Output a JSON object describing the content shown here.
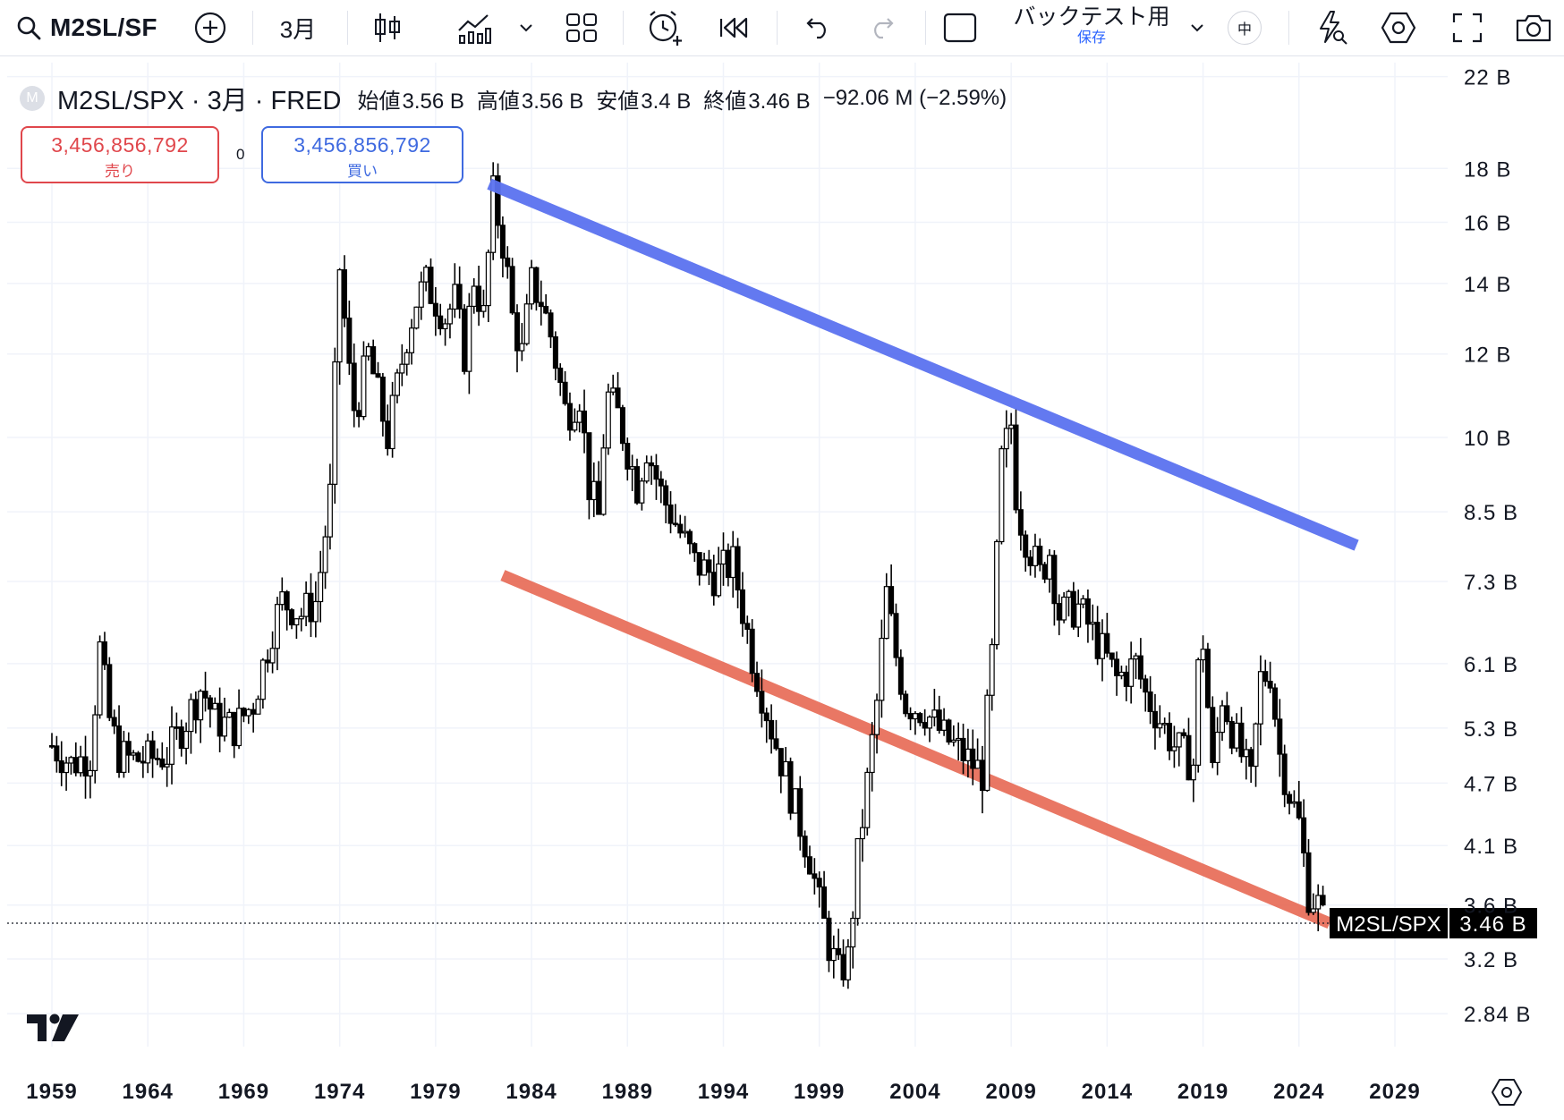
{
  "toolbar": {
    "symbol": "M2SL/SF",
    "interval": "3月",
    "layout_name": "バックテスト用",
    "layout_status": "保存",
    "lang_badge": "中"
  },
  "legend": {
    "logo_letter": "M",
    "symbol_line": "M2SL/SPX · 3月 · FRED",
    "open_label": "始値",
    "open": "3.56 B",
    "high_label": "高値",
    "high": "3.56 B",
    "low_label": "安値",
    "low": "3.4 B",
    "close_label": "終値",
    "close": "3.46 B",
    "change": "−92.06 M (−2.59%)"
  },
  "trade": {
    "sell_price": "3,456,856,792",
    "sell_label": "売り",
    "spread": "0",
    "buy_price": "3,456,856,792",
    "buy_label": "買い"
  },
  "colors": {
    "candle": "#000000",
    "upper_trendline": "#5b72f0",
    "lower_trendline": "#e8705c",
    "sell": "#e0474c",
    "buy": "#3f6ae0"
  },
  "chart_data": {
    "type": "candlestick",
    "title": "M2SL/SPX · 3月 · FRED",
    "scale": "log",
    "ylim": [
      2.7,
      22.5
    ],
    "y_unit": "B",
    "y_ticks": [
      2.84,
      3.2,
      3.6,
      4.1,
      4.7,
      5.3,
      6.1,
      7.3,
      8.5,
      10,
      12,
      14,
      16,
      18,
      22
    ],
    "y_tick_labels": [
      "2.84 B",
      "3.2 B",
      "3.6 B",
      "4.1 B",
      "4.7 B",
      "5.3 B",
      "6.1 B",
      "7.3 B",
      "8.5 B",
      "10 B",
      "12 B",
      "14 B",
      "16 B",
      "18 B",
      "22 B"
    ],
    "x_ticks": [
      1959,
      1964,
      1969,
      1974,
      1979,
      1984,
      1989,
      1994,
      1999,
      2004,
      2009,
      2014,
      2019,
      2024,
      2029
    ],
    "xlim": [
      1957.7,
      2031.3
    ],
    "grid": true,
    "last_price": 3.46,
    "last_price_label": "3.46 B",
    "last_symbol_tag": "M2SL/SPX",
    "series": [
      {
        "name": "M2SL/SPX",
        "x": [
          1959.0,
          1960.0,
          1961.0,
          1961.5,
          1962.0,
          1962.5,
          1963.0,
          1964.0,
          1965.0,
          1966.0,
          1966.8,
          1967.5,
          1968.5,
          1969.5,
          1970.5,
          1971.0,
          1972.0,
          1972.8,
          1973.5,
          1974.0,
          1974.5,
          1974.8,
          1975.5,
          1976.5,
          1977.5,
          1978.0,
          1978.5,
          1979.5,
          1980.0,
          1980.5,
          1981.0,
          1981.5,
          1982.0,
          1982.6,
          1983.0,
          1983.5,
          1984.0,
          1984.5,
          1985.0,
          1985.8,
          1986.5,
          1987.0,
          1987.5,
          1987.9,
          1988.5,
          1989.5,
          1990.0,
          1990.8,
          1991.5,
          1992.5,
          1993.5,
          1994.5,
          1995.5,
          1996.5,
          1997.5,
          1998.5,
          1999.0,
          1999.5,
          2000.0,
          2000.5,
          2001.0,
          2001.5,
          2002.0,
          2002.5,
          2003.0,
          2003.5,
          2004.5,
          2005.5,
          2006.5,
          2007.5,
          2008.0,
          2008.5,
          2009.0,
          2009.3,
          2009.8,
          2010.5,
          2011.0,
          2011.5,
          2012.5,
          2013.5,
          2014.5,
          2015.5,
          2016.0,
          2016.5,
          2017.5,
          2018.5,
          2018.9,
          2019.5,
          2020.0,
          2020.5,
          2021.5,
          2022.0,
          2022.5,
          2023.0,
          2023.5,
          2024.0,
          2024.5,
          2025.0,
          2025.3
        ],
        "close": [
          5.1,
          4.9,
          5.0,
          6.3,
          5.4,
          5.0,
          4.95,
          4.95,
          5.0,
          5.4,
          5.8,
          5.4,
          5.3,
          5.6,
          6.6,
          7.0,
          6.8,
          7.0,
          8.8,
          14.5,
          11.5,
          10.5,
          12.0,
          10.0,
          12.5,
          13.5,
          14.0,
          13.0,
          13.5,
          12.0,
          14.2,
          13.0,
          17.0,
          15.0,
          13.0,
          12.0,
          14.0,
          13.5,
          12.5,
          10.5,
          11.0,
          9.0,
          8.4,
          11.0,
          10.5,
          9.0,
          9.8,
          8.8,
          8.3,
          7.6,
          7.4,
          7.6,
          6.2,
          5.3,
          4.6,
          4.0,
          3.6,
          3.3,
          3.1,
          3.2,
          4.0,
          4.7,
          5.6,
          7.1,
          6.2,
          5.6,
          5.5,
          5.2,
          5.0,
          4.8,
          6.2,
          9.5,
          10.3,
          8.6,
          8.0,
          7.4,
          7.8,
          6.8,
          6.9,
          6.4,
          5.9,
          6.1,
          5.7,
          5.5,
          5.1,
          4.9,
          6.8,
          4.8,
          5.7,
          5.3,
          4.7,
          5.9,
          6.0,
          5.0,
          4.6,
          4.3,
          3.7,
          3.6,
          3.46
        ]
      }
    ],
    "trendlines": [
      {
        "name": "upper",
        "color": "#5b72f0",
        "from": [
          1981.8,
          17.4
        ],
        "to": [
          2027.0,
          7.9
        ]
      },
      {
        "name": "lower",
        "color": "#e8705c",
        "from": [
          1982.5,
          7.4
        ],
        "to": [
          2025.6,
          3.46
        ]
      }
    ]
  }
}
